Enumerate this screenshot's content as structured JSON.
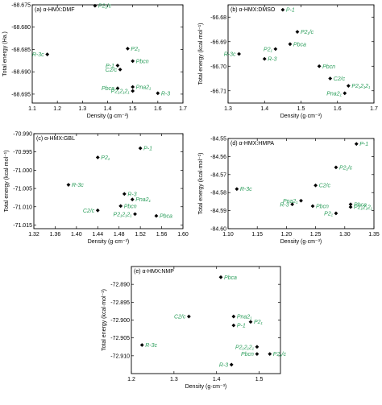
{
  "colors": {
    "point": "#000000",
    "label": "#2a9d5a",
    "axes": "#000000"
  },
  "chart_data": [
    {
      "type": "scatter",
      "title": "(a) α-HMX:DMF",
      "xlabel": "Density (g·cm⁻³)",
      "ylabel": "Total energy (Ha.)",
      "xlim": [
        1.1,
        1.7
      ],
      "ylim": [
        -68.697,
        -68.675
      ],
      "xticks": [
        "1.1",
        "1.2",
        "1.3",
        "1.4",
        "1.5",
        "1.6",
        "1.7"
      ],
      "yticks": [
        "-68.675",
        "-68.680",
        "-68.685",
        "-68.690",
        "-68.695"
      ],
      "points": [
        {
          "label": "P2₁/c",
          "x": 1.35,
          "y": -68.6752
        },
        {
          "label": "P2₁",
          "x": 1.48,
          "y": -68.6848
        },
        {
          "label": "R-3c",
          "x": 1.16,
          "y": -68.6861
        },
        {
          "label": "Pbcn",
          "x": 1.5,
          "y": -68.6876
        },
        {
          "label": "P-1",
          "x": 1.44,
          "y": -68.6886
        },
        {
          "label": "C2/c",
          "x": 1.45,
          "y": -68.6895
        },
        {
          "label": "Pna2₁",
          "x": 1.5,
          "y": -68.6934
        },
        {
          "label": "Pbca",
          "x": 1.44,
          "y": -68.6937
        },
        {
          "label": "P2₁2₁2₁",
          "x": 1.5,
          "y": -68.6943
        },
        {
          "label": "R-3",
          "x": 1.6,
          "y": -68.6948
        }
      ],
      "labels_left": [
        "R-3c",
        "P-1",
        "C2/c",
        "Pbca",
        "P2₁2₁2₁"
      ]
    },
    {
      "type": "scatter",
      "title": "(b) α-HMX:DMSO",
      "xlabel": "Density (g·cm⁻³)",
      "ylabel": "Total energy (kcal·mol⁻¹)",
      "xlim": [
        1.3,
        1.7
      ],
      "ylim": [
        -66.715,
        -66.675
      ],
      "xticks": [
        "1.3",
        "1.4",
        "1.5",
        "1.6",
        "1.7"
      ],
      "yticks": [
        "-66.68",
        "-66.69",
        "-66.70",
        "-66.71"
      ],
      "points": [
        {
          "label": "P-1",
          "x": 1.45,
          "y": -66.677
        },
        {
          "label": "P2₁/c",
          "x": 1.49,
          "y": -66.686
        },
        {
          "label": "Pbca",
          "x": 1.47,
          "y": -66.691
        },
        {
          "label": "P2₁",
          "x": 1.43,
          "y": -66.693
        },
        {
          "label": "R-3c",
          "x": 1.33,
          "y": -66.695
        },
        {
          "label": "R-3",
          "x": 1.4,
          "y": -66.697
        },
        {
          "label": "Pbcn",
          "x": 1.55,
          "y": -66.7
        },
        {
          "label": "C2/c",
          "x": 1.58,
          "y": -66.705
        },
        {
          "label": "P2₁2₁2₁",
          "x": 1.63,
          "y": -66.708
        },
        {
          "label": "Pna2₁",
          "x": 1.62,
          "y": -66.711
        }
      ],
      "labels_left": [
        "R-3c",
        "P2₁",
        "Pna2₁"
      ]
    },
    {
      "type": "scatter",
      "title": "(c) α-HMX:GBL",
      "xlabel": "Density (g·cm⁻³)",
      "ylabel": "Total energy (kcal·mol⁻¹)",
      "xlim": [
        1.32,
        1.6
      ],
      "ylim": [
        -71.016,
        -70.99
      ],
      "xticks": [
        "1.32",
        "1.36",
        "1.40",
        "1.44",
        "1.48",
        "1.52",
        "1.56",
        "1.60"
      ],
      "yticks": [
        "-70.990",
        "-70.995",
        "-71.000",
        "-71.005",
        "-71.010",
        "-71.015"
      ],
      "points": [
        {
          "label": "P-1",
          "x": 1.52,
          "y": -70.994
        },
        {
          "label": "P2₁",
          "x": 1.44,
          "y": -70.9965
        },
        {
          "label": "R-3c",
          "x": 1.385,
          "y": -71.004
        },
        {
          "label": "R-3",
          "x": 1.49,
          "y": -71.0065
        },
        {
          "label": "Pna2₁",
          "x": 1.505,
          "y": -71.008
        },
        {
          "label": "Pbcn",
          "x": 1.483,
          "y": -71.0098
        },
        {
          "label": "C2/c",
          "x": 1.44,
          "y": -71.011
        },
        {
          "label": "Pbca",
          "x": 1.55,
          "y": -71.0125
        },
        {
          "label": "P2₁2₁2₁",
          "x": 1.51,
          "y": -71.012
        }
      ],
      "labels_left": [
        "C2/c",
        "P2₁2₁2₁"
      ]
    },
    {
      "type": "scatter",
      "title": "(d) α-HMX:HMPA",
      "xlabel": "Density (g·cm⁻³)",
      "ylabel": "Total energy (kcal·mol⁻¹)",
      "xlim": [
        1.1,
        1.35
      ],
      "ylim": [
        -84.6,
        -84.55
      ],
      "xticks": [
        "1.10",
        "1.15",
        "1.20",
        "1.25",
        "1.30",
        "1.35"
      ],
      "yticks": [
        "-84.55",
        "-84.56",
        "-84.57",
        "-84.58",
        "-84.59",
        "-84.60"
      ],
      "points": [
        {
          "label": "P-1",
          "x": 1.32,
          "y": -84.553
        },
        {
          "label": "P2₁/c",
          "x": 1.285,
          "y": -84.566
        },
        {
          "label": "C2/c",
          "x": 1.25,
          "y": -84.576
        },
        {
          "label": "R-3c",
          "x": 1.115,
          "y": -84.578
        },
        {
          "label": "Pna2₁",
          "x": 1.225,
          "y": -84.5845
        },
        {
          "label": "R-3",
          "x": 1.21,
          "y": -84.5865
        },
        {
          "label": "Pbcn",
          "x": 1.245,
          "y": -84.5875
        },
        {
          "label": "Pbca",
          "x": 1.31,
          "y": -84.5865
        },
        {
          "label": "P2₁2₁2₁",
          "x": 1.31,
          "y": -84.588
        },
        {
          "label": "P2₁",
          "x": 1.285,
          "y": -84.5915
        }
      ],
      "labels_left": [
        "R-3",
        "Pna2₁",
        "P2₁"
      ]
    },
    {
      "type": "scatter",
      "title": "(e) α-HMX:NMP",
      "xlabel": "Density (g·cm⁻³)",
      "ylabel": "Total energy (kcal·mol⁻¹)",
      "xlim": [
        1.2,
        1.55
      ],
      "ylim": [
        -72.915,
        -72.885
      ],
      "xticks": [
        "1.2",
        "1.3",
        "1.4",
        "1.5"
      ],
      "yticks": [
        "-72.890",
        "-72.895",
        "-72.900",
        "-72.905",
        "-72.910"
      ],
      "points": [
        {
          "label": "Pbca",
          "x": 1.41,
          "y": -72.888
        },
        {
          "label": "C2/c",
          "x": 1.335,
          "y": -72.899
        },
        {
          "label": "Pna2₁",
          "x": 1.44,
          "y": -72.899
        },
        {
          "label": "P2₁",
          "x": 1.48,
          "y": -72.9005
        },
        {
          "label": "P-1",
          "x": 1.44,
          "y": -72.9015
        },
        {
          "label": "R-3c",
          "x": 1.225,
          "y": -72.907
        },
        {
          "label": "P2₁2₁2₁",
          "x": 1.495,
          "y": -72.9075
        },
        {
          "label": "Pbcn",
          "x": 1.495,
          "y": -72.9095
        },
        {
          "label": "P2₁/c",
          "x": 1.525,
          "y": -72.9095
        },
        {
          "label": "R-3",
          "x": 1.435,
          "y": -72.9125
        }
      ],
      "labels_left": [
        "C2/c",
        "P2₁2₁2₁",
        "Pbcn",
        "R-3"
      ]
    }
  ]
}
